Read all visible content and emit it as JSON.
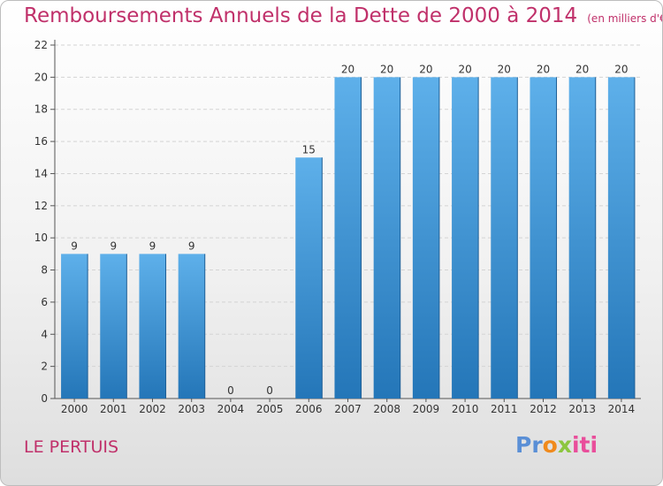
{
  "title": "Remboursements Annuels de la Dette de 2000 à 2014",
  "unit_note": "(en milliers d'€)",
  "commune": "LE PERTUIS",
  "logo": {
    "text": "Proxiti",
    "colors": [
      "#5a8fd6",
      "#f08a1c",
      "#8cc63f",
      "#e94e9b"
    ]
  },
  "colors": {
    "title": "#c0306a",
    "bar_top": "#5eb0ea",
    "bar_bottom": "#2476b8"
  },
  "chart_data": {
    "type": "bar",
    "title": "Remboursements Annuels de la Dette de 2000 à 2014",
    "xlabel": "",
    "ylabel": "",
    "categories": [
      "2000",
      "2001",
      "2002",
      "2003",
      "2004",
      "2005",
      "2006",
      "2007",
      "2008",
      "2009",
      "2010",
      "2011",
      "2012",
      "2013",
      "2014"
    ],
    "values": [
      9,
      9,
      9,
      9,
      0,
      0,
      15,
      20,
      20,
      20,
      20,
      20,
      20,
      20,
      20
    ],
    "ylim": [
      0,
      22
    ],
    "yticks": [
      0,
      2,
      4,
      6,
      8,
      10,
      12,
      14,
      16,
      18,
      20,
      22
    ],
    "grid": true,
    "legend": "none"
  }
}
